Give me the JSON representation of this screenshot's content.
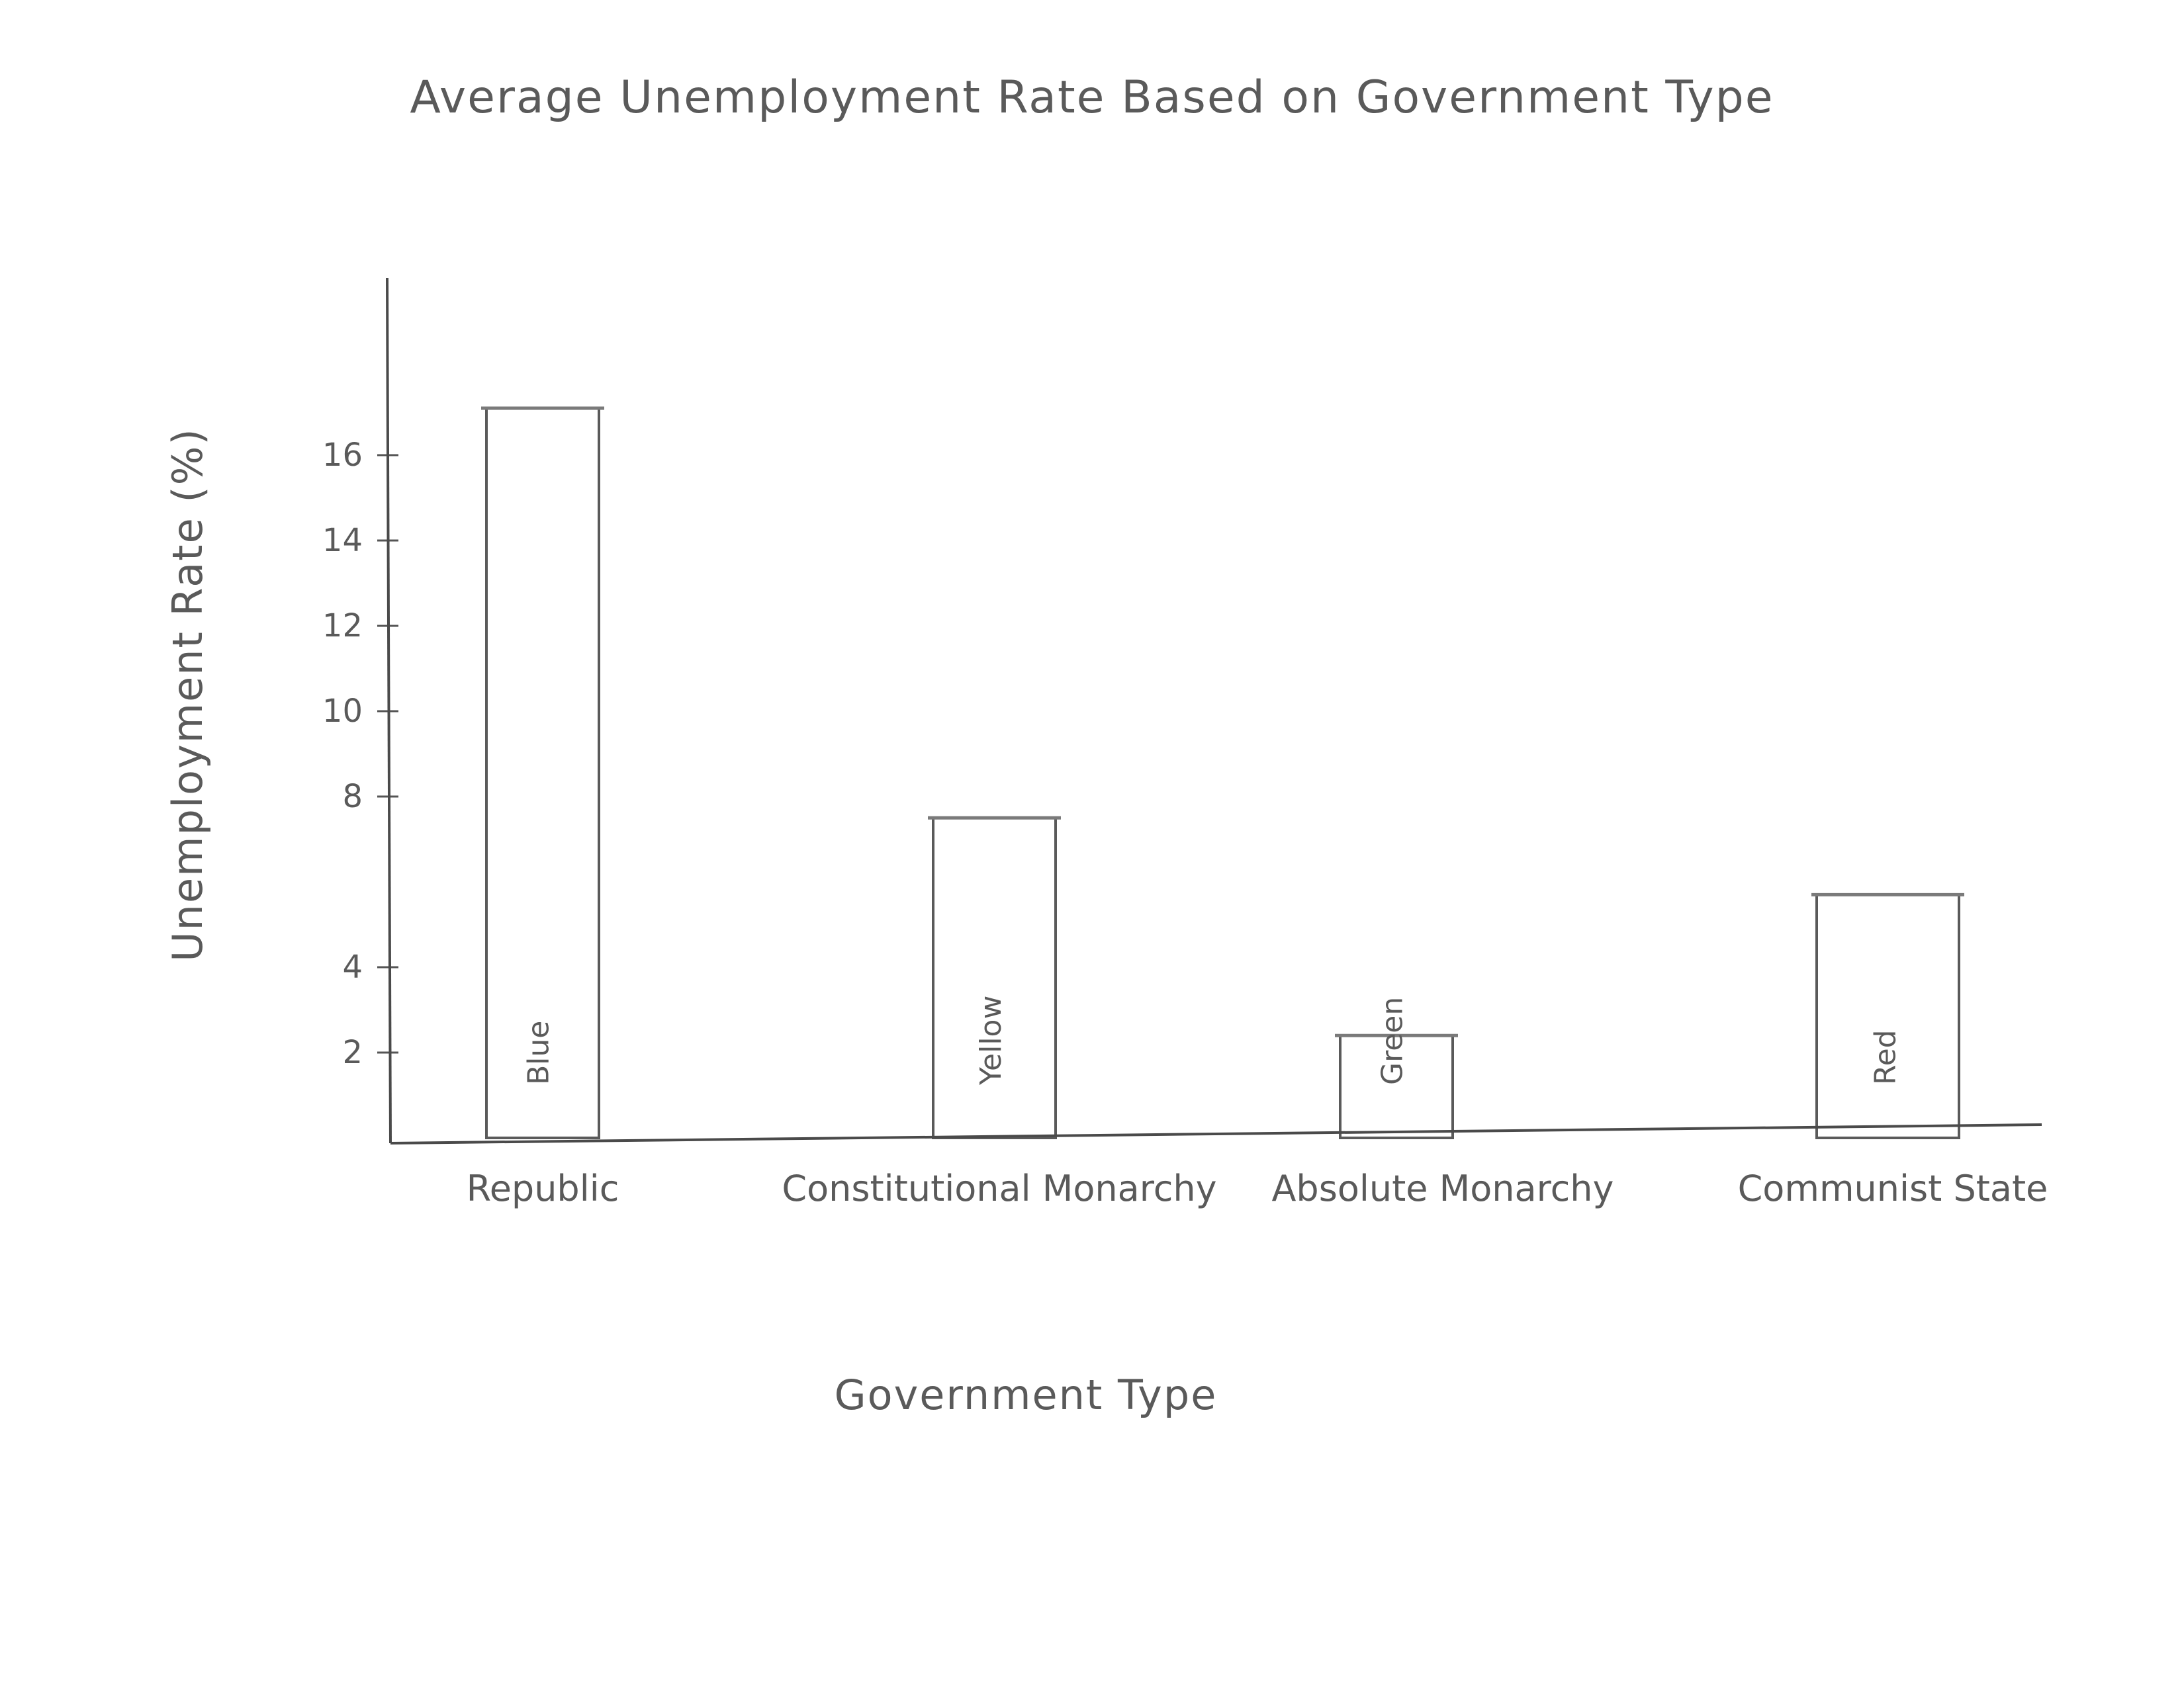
{
  "chart_data": {
    "type": "bar",
    "title": "Average Unemployment Rate Based on Government Type",
    "xlabel": "Government Type",
    "ylabel": "Unemployment Rate (%)",
    "categories": [
      "Republic",
      "Constitutional Monarchy",
      "Absolute Monarchy",
      "Communist State"
    ],
    "values": [
      17.1,
      7.5,
      2.4,
      5.7
    ],
    "bar_labels": [
      "Blue",
      "Yellow",
      "Green",
      "Red"
    ],
    "yticks": [
      2,
      4,
      8,
      10,
      12,
      14,
      16
    ],
    "ylim": [
      0,
      18.5
    ],
    "grid": false,
    "legend": "none"
  }
}
